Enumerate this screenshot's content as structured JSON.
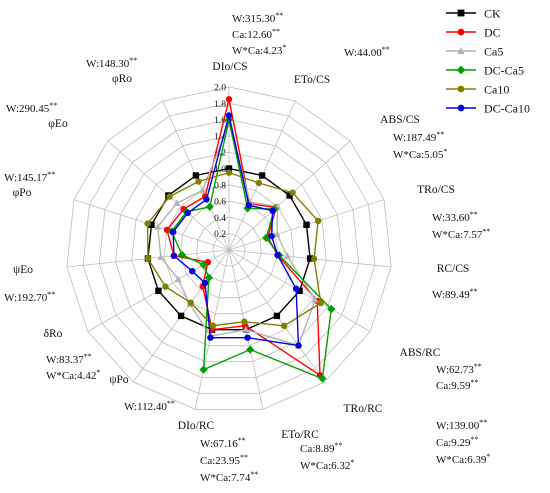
{
  "chart_data": {
    "type": "radar",
    "axes": [
      "DIo/CS",
      "ETo/CS",
      "ABS/CS",
      "TRo/CS",
      "RC/CS",
      "ABS/RC",
      "TRo/RC",
      "ETo/RC",
      "DIo/RC",
      "ψPo",
      "δRo",
      "ψEo",
      "φPo",
      "φEo",
      "φRo"
    ],
    "r_ticks": [
      "0.2",
      "0.4",
      "0.6",
      "0.8",
      "1.0",
      "1.2",
      "1.4",
      "1.6",
      "1.8",
      "2.0"
    ],
    "rlim": [
      0,
      2.0
    ],
    "legend_position": "top-right",
    "series": [
      {
        "name": "CK",
        "color": "#000000",
        "marker": "square",
        "values": [
          1.0,
          1.0,
          1.0,
          1.0,
          1.0,
          1.0,
          1.0,
          1.0,
          1.0,
          1.0,
          1.0,
          1.0,
          1.0,
          1.0,
          1.0
        ]
      },
      {
        "name": "DC",
        "color": "#ff0000",
        "marker": "circle",
        "values": [
          1.85,
          0.62,
          0.78,
          0.5,
          0.6,
          1.25,
          1.9,
          0.95,
          1.0,
          0.55,
          0.3,
          0.68,
          0.8,
          0.75,
          0.72
        ]
      },
      {
        "name": "Ca5",
        "color": "#b4b4b4",
        "marker": "triangle",
        "values": [
          1.55,
          0.64,
          0.8,
          0.62,
          0.72,
          1.22,
          1.45,
          1.0,
          1.08,
          0.82,
          0.72,
          0.84,
          0.92,
          0.86,
          0.8
        ]
      },
      {
        "name": "DC-Ca5",
        "color": "#00a000",
        "marker": "diamond",
        "values": [
          1.6,
          0.56,
          0.75,
          0.48,
          0.62,
          1.45,
          1.95,
          1.25,
          1.5,
          0.42,
          0.36,
          0.58,
          0.74,
          0.7,
          0.58
        ]
      },
      {
        "name": "Ca10",
        "color": "#808000",
        "marker": "circle",
        "values": [
          0.95,
          0.9,
          1.05,
          1.15,
          1.05,
          1.3,
          1.15,
          0.9,
          0.95,
          0.8,
          0.9,
          1.0,
          1.05,
          0.98,
          0.92
        ]
      },
      {
        "name": "DC-Ca10",
        "color": "#0000e0",
        "marker": "circle",
        "values": [
          1.65,
          0.6,
          0.72,
          0.55,
          0.6,
          0.95,
          1.45,
          1.1,
          1.1,
          0.5,
          0.52,
          0.68,
          0.72,
          0.68,
          0.68
        ]
      }
    ],
    "annotations": [
      {
        "id": "a0",
        "lines": [
          [
            {
              "t": "W:315.30"
            },
            {
              "t": "**",
              "sup": true
            }
          ],
          [
            {
              "t": "Ca:12.60"
            },
            {
              "t": "**",
              "sup": true
            }
          ],
          [
            {
              "t": "W*Ca:4.23"
            },
            {
              "t": "*",
              "sup": true
            }
          ]
        ]
      },
      {
        "id": "a1",
        "lines": [
          [
            {
              "t": "W:44.00"
            },
            {
              "t": "**",
              "sup": true
            }
          ]
        ]
      },
      {
        "id": "a2",
        "lines": [
          [
            {
              "t": "W:187.49"
            },
            {
              "t": "**",
              "sup": true
            }
          ],
          [
            {
              "t": "W*Ca:5.05"
            },
            {
              "t": "*",
              "sup": true
            }
          ]
        ]
      },
      {
        "id": "a3",
        "lines": [
          [
            {
              "t": "W:33.60"
            },
            {
              "t": "**",
              "sup": true
            }
          ],
          [
            {
              "t": "W*Ca:7.57"
            },
            {
              "t": "**",
              "sup": true
            }
          ]
        ]
      },
      {
        "id": "a4",
        "lines": [
          [
            {
              "t": "W:89.49"
            },
            {
              "t": "**",
              "sup": true
            }
          ]
        ]
      },
      {
        "id": "a5",
        "lines": [
          [
            {
              "t": "W:62.73"
            },
            {
              "t": "**",
              "sup": true
            }
          ],
          [
            {
              "t": "Ca:9.59"
            },
            {
              "t": "**",
              "sup": true
            }
          ]
        ]
      },
      {
        "id": "a6",
        "lines": [
          [
            {
              "t": "W:139.00"
            },
            {
              "t": "**",
              "sup": true
            }
          ],
          [
            {
              "t": "Ca:9.29"
            },
            {
              "t": "**",
              "sup": true
            }
          ],
          [
            {
              "t": "W*Ca:6.39"
            },
            {
              "t": "*",
              "sup": true
            }
          ]
        ]
      },
      {
        "id": "a7",
        "lines": [
          [
            {
              "t": "Ca:8.89"
            },
            {
              "t": "**",
              "sup": true
            }
          ],
          [
            {
              "t": "W*Ca:6.32"
            },
            {
              "t": "*",
              "sup": true
            }
          ]
        ]
      },
      {
        "id": "a8",
        "lines": [
          [
            {
              "t": "W:67.16"
            },
            {
              "t": "**",
              "sup": true
            }
          ],
          [
            {
              "t": "Ca:23.95"
            },
            {
              "t": "**",
              "sup": true
            }
          ],
          [
            {
              "t": "W*Ca:7.74"
            },
            {
              "t": "**",
              "sup": true
            }
          ]
        ]
      },
      {
        "id": "a9",
        "lines": [
          [
            {
              "t": "W:112.40"
            },
            {
              "t": "**",
              "sup": true
            }
          ]
        ]
      },
      {
        "id": "a10",
        "lines": [
          [
            {
              "t": "W:83.37"
            },
            {
              "t": "**",
              "sup": true
            }
          ],
          [
            {
              "t": "W*Ca:4.42"
            },
            {
              "t": "*",
              "sup": true
            }
          ]
        ]
      },
      {
        "id": "a11",
        "lines": [
          [
            {
              "t": "W:192.70"
            },
            {
              "t": "**",
              "sup": true
            }
          ]
        ]
      },
      {
        "id": "a12",
        "lines": [
          [
            {
              "t": "W:145.17"
            },
            {
              "t": "**",
              "sup": true
            }
          ]
        ]
      },
      {
        "id": "a13",
        "lines": [
          [
            {
              "t": "W:290.45"
            },
            {
              "t": "**",
              "sup": true
            }
          ]
        ]
      },
      {
        "id": "a14",
        "lines": [
          [
            {
              "t": "W:148.30"
            },
            {
              "t": "**",
              "sup": true
            }
          ]
        ]
      }
    ]
  }
}
